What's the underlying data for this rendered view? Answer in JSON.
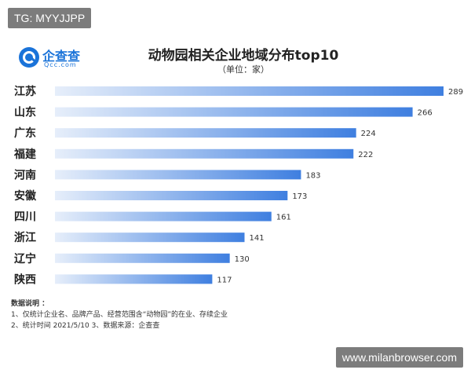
{
  "watermark_top": "TG: MYYJJPP",
  "watermark_bottom": "www.milanbrowser.com",
  "logo": {
    "name": "企查查",
    "sub": "Qcc.com",
    "icon": "qcc-logo-icon",
    "color": "#1a73d9"
  },
  "notes": {
    "heading": "数据说明 ：",
    "line1": "1、仅统计企业名、品牌产品、经营范围含“动物园”的在业、存续企业",
    "line2": "2、统计时间   2021/5/10        3、数据来源：企查查"
  },
  "chart_data": {
    "type": "bar",
    "orientation": "horizontal",
    "title": "动物园相关企业地域分布top10",
    "subtitle": "（单位：家）",
    "categories": [
      "江苏",
      "山东",
      "广东",
      "福建",
      "河南",
      "安徽",
      "四川",
      "浙江",
      "辽宁",
      "陕西"
    ],
    "values": [
      289,
      266,
      224,
      222,
      183,
      173,
      161,
      141,
      130,
      117
    ],
    "xlim": [
      0,
      289
    ],
    "grid": false,
    "legend": "none",
    "colors": {
      "bar_start": "#e6eefa",
      "bar_end": "#3f7fe0",
      "label": "#222222",
      "value": "#333333"
    }
  }
}
